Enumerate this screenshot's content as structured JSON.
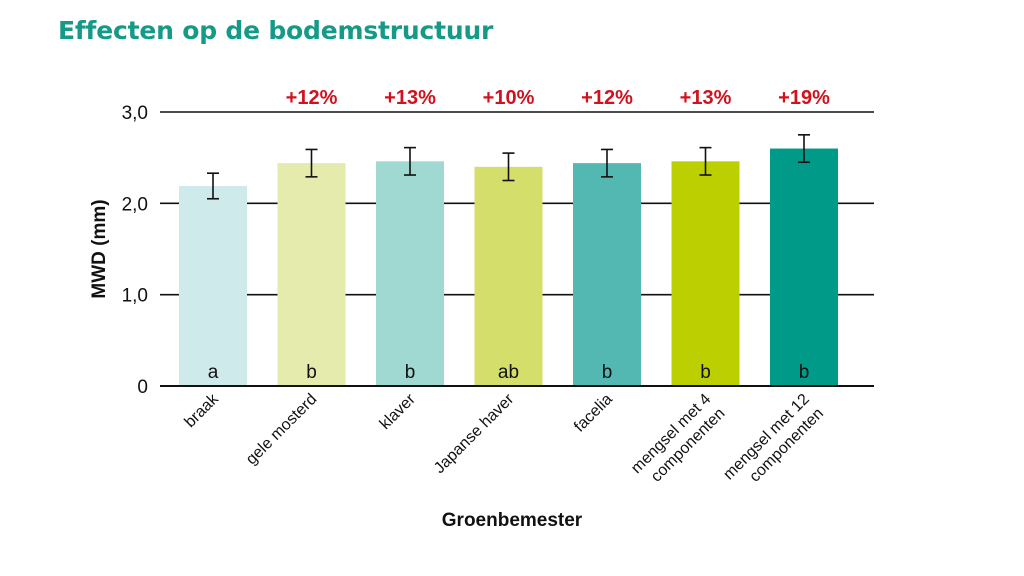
{
  "page": {
    "title": "Effecten op de bodemstructuur"
  },
  "colors": {
    "title": "#159a87",
    "increase": "#d0121e",
    "axis": "#111111",
    "grid": "#111111"
  },
  "chart_data": {
    "type": "bar",
    "xlabel": "Groenbemester",
    "ylabel": "MWD (mm)",
    "ylim": [
      0,
      3.0
    ],
    "yticks": [
      {
        "value": 0,
        "label": "0"
      },
      {
        "value": 1.0,
        "label": "1,0"
      },
      {
        "value": 2.0,
        "label": "2,0"
      },
      {
        "value": 3.0,
        "label": "3,0"
      }
    ],
    "grid": true,
    "categories": [
      {
        "lines": [
          "braak"
        ]
      },
      {
        "lines": [
          "gele mosterd"
        ]
      },
      {
        "lines": [
          "klaver"
        ]
      },
      {
        "lines": [
          "Japanse haver"
        ]
      },
      {
        "lines": [
          "facelia"
        ]
      },
      {
        "lines": [
          "mengsel met 4",
          "componenten"
        ]
      },
      {
        "lines": [
          "mengsel met 12",
          "componenten"
        ]
      }
    ],
    "values": [
      2.19,
      2.44,
      2.46,
      2.4,
      2.44,
      2.46,
      2.6
    ],
    "error": [
      0.14,
      0.15,
      0.15,
      0.15,
      0.15,
      0.15,
      0.15
    ],
    "letters": [
      "a",
      "b",
      "b",
      "ab",
      "b",
      "b",
      "b"
    ],
    "increase_labels": [
      "",
      "+12%",
      "+13%",
      "+10%",
      "+12%",
      "+13%",
      "+19%"
    ],
    "bar_colors": [
      "#cfeaea",
      "#e5eaad",
      "#9fd9d1",
      "#d4de6b",
      "#52b8b1",
      "#bccf00",
      "#009a88"
    ]
  }
}
